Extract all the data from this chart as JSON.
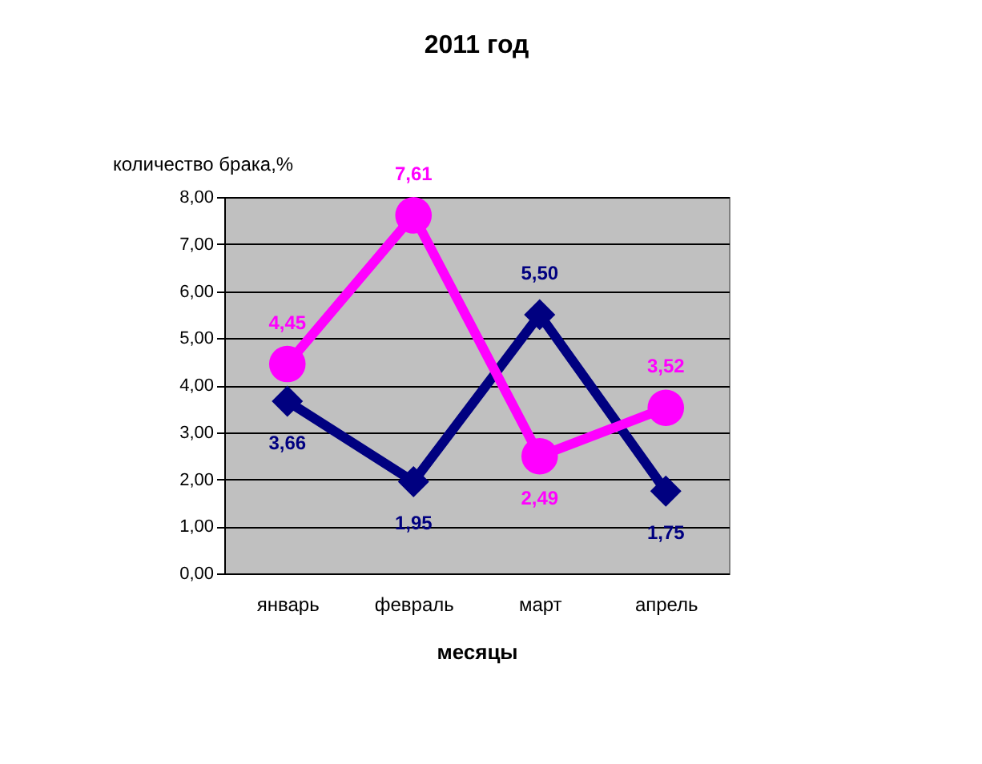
{
  "chart_data": {
    "type": "line",
    "title": "2011 год",
    "xlabel": "месяцы",
    "ylabel": "количество брака,%",
    "categories": [
      "январь",
      "февраль",
      "март",
      "апрель"
    ],
    "series": [
      {
        "color": "#000080",
        "marker": "diamond",
        "values": [
          3.66,
          1.95,
          5.5,
          1.75
        ],
        "value_labels": [
          "3,66",
          "1,95",
          "5,50",
          "1,75"
        ]
      },
      {
        "color": "#ff00ff",
        "marker": "circle",
        "values": [
          4.45,
          7.61,
          2.49,
          3.52
        ],
        "value_labels": [
          "4,45",
          "7,61",
          "2,49",
          "3,52"
        ]
      }
    ],
    "ylim": [
      0,
      8
    ],
    "yticks": [
      {
        "value": 0,
        "label": "0,00"
      },
      {
        "value": 1,
        "label": "1,00"
      },
      {
        "value": 2,
        "label": "2,00"
      },
      {
        "value": 3,
        "label": "3,00"
      },
      {
        "value": 4,
        "label": "4,00"
      },
      {
        "value": 5,
        "label": "5,00"
      },
      {
        "value": 6,
        "label": "6,00"
      },
      {
        "value": 7,
        "label": "7,00"
      },
      {
        "value": 8,
        "label": "8,00"
      }
    ],
    "grid": "y"
  }
}
